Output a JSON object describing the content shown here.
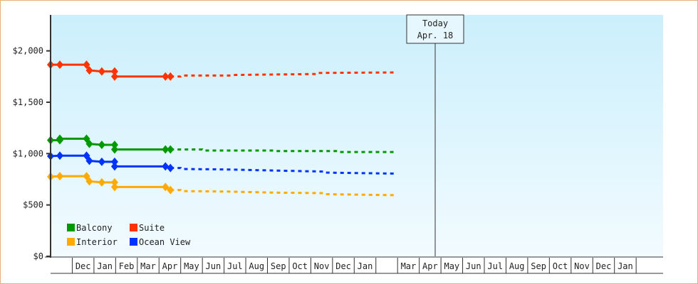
{
  "chart_data": {
    "type": "line",
    "title": "",
    "xlabel": "",
    "ylabel": "",
    "ylim": [
      0,
      2350
    ],
    "y_ticks": [
      {
        "value": 0,
        "label": "$0"
      },
      {
        "value": 500,
        "label": "$500"
      },
      {
        "value": 1000,
        "label": "$1,000"
      },
      {
        "value": 1500,
        "label": "$1,500"
      },
      {
        "value": 2000,
        "label": "$2,000"
      }
    ],
    "x_months": [
      "Dec",
      "Jan",
      "Feb",
      "Mar",
      "Apr",
      "May",
      "Jun",
      "Jul",
      "Aug",
      "Sep",
      "Oct",
      "Nov",
      "Dec",
      "Jan",
      "",
      "Mar",
      "Apr",
      "May",
      "Jun",
      "Jul",
      "Aug",
      "Sep",
      "Oct",
      "Nov",
      "Dec",
      "Jan",
      ""
    ],
    "x_start": "Nov 1",
    "today": {
      "line1": "Today",
      "line2": "Apr. 18",
      "date": "Apr 17"
    },
    "grid": false,
    "legend": "bottom-left",
    "series": [
      {
        "name": "Balcony",
        "color": "#009900",
        "history": [
          [
            "Nov 1",
            1130
          ],
          [
            "Nov 14",
            1130
          ],
          [
            "Nov 14",
            1145
          ],
          [
            "Dec 21",
            1145
          ],
          [
            "Dec 25",
            1095
          ],
          [
            "Jan 12",
            1085
          ],
          [
            "Jan 30",
            1085
          ],
          [
            "Jan 30",
            1040
          ],
          [
            "Apr 10",
            1040
          ],
          [
            "Apr 17",
            1040
          ]
        ],
        "markers": [
          "Nov 1",
          "Nov 14",
          "Dec 21",
          "Dec 25",
          "Jan 12",
          "Jan 30",
          "Apr 10",
          "Apr 17"
        ],
        "forecast": [
          [
            "Apr 17",
            1040
          ],
          [
            "Jun 1",
            1040
          ],
          [
            "Jun 2",
            1030
          ],
          [
            "Sep 10",
            1030
          ],
          [
            "Sep 11",
            1025
          ],
          [
            "Dec 10",
            1025
          ],
          [
            "Dec 11",
            1015
          ],
          [
            "Feb 28",
            1015
          ]
        ]
      },
      {
        "name": "Suite",
        "color": "#ff3300",
        "history": [
          [
            "Nov 1",
            1865
          ],
          [
            "Nov 14",
            1865
          ],
          [
            "Dec 21",
            1865
          ],
          [
            "Dec 25",
            1810
          ],
          [
            "Jan 12",
            1800
          ],
          [
            "Jan 30",
            1800
          ],
          [
            "Jan 30",
            1750
          ],
          [
            "Apr 10",
            1750
          ],
          [
            "Apr 17",
            1750
          ]
        ],
        "markers": [
          "Nov 1",
          "Nov 14",
          "Dec 21",
          "Dec 25",
          "Jan 12",
          "Jan 30",
          "Apr 10",
          "Apr 17"
        ],
        "forecast": [
          [
            "Apr 17",
            1750
          ],
          [
            "May 1",
            1750
          ],
          [
            "May 2",
            1760
          ],
          [
            "Jul 10",
            1760
          ],
          [
            "Jul 11",
            1765
          ],
          [
            "Sep 10",
            1770
          ],
          [
            "Nov 10",
            1775
          ],
          [
            "Nov 11",
            1785
          ],
          [
            "Feb 28",
            1790
          ]
        ]
      },
      {
        "name": "Interior",
        "color": "#ffaa00",
        "history": [
          [
            "Nov 1",
            775
          ],
          [
            "Nov 14",
            780
          ],
          [
            "Dec 21",
            780
          ],
          [
            "Dec 25",
            730
          ],
          [
            "Jan 12",
            720
          ],
          [
            "Jan 30",
            720
          ],
          [
            "Jan 30",
            675
          ],
          [
            "Apr 10",
            675
          ],
          [
            "Apr 17",
            645
          ]
        ],
        "markers": [
          "Nov 1",
          "Nov 14",
          "Dec 21",
          "Dec 25",
          "Jan 12",
          "Jan 30",
          "Apr 10",
          "Apr 17"
        ],
        "forecast": [
          [
            "Apr 17",
            645
          ],
          [
            "May 1",
            645
          ],
          [
            "May 2",
            635
          ],
          [
            "Jul 10",
            630
          ],
          [
            "Sep 10",
            620
          ],
          [
            "Nov 20",
            615
          ],
          [
            "Nov 21",
            605
          ],
          [
            "Feb 28",
            595
          ]
        ]
      },
      {
        "name": "Ocean View",
        "color": "#0033ff",
        "history": [
          [
            "Nov 1",
            975
          ],
          [
            "Nov 14",
            980
          ],
          [
            "Dec 21",
            980
          ],
          [
            "Dec 25",
            930
          ],
          [
            "Jan 12",
            920
          ],
          [
            "Jan 30",
            920
          ],
          [
            "Jan 30",
            875
          ],
          [
            "Apr 10",
            875
          ],
          [
            "Apr 17",
            860
          ]
        ],
        "markers": [
          "Nov 1",
          "Nov 14",
          "Dec 21",
          "Dec 25",
          "Jan 12",
          "Jan 30",
          "Apr 10",
          "Apr 17"
        ],
        "forecast": [
          [
            "Apr 17",
            860
          ],
          [
            "May 1",
            860
          ],
          [
            "May 2",
            850
          ],
          [
            "Jul 10",
            845
          ],
          [
            "Sep 10",
            835
          ],
          [
            "Nov 20",
            825
          ],
          [
            "Nov 21",
            815
          ],
          [
            "Feb 28",
            805
          ]
        ]
      }
    ]
  }
}
